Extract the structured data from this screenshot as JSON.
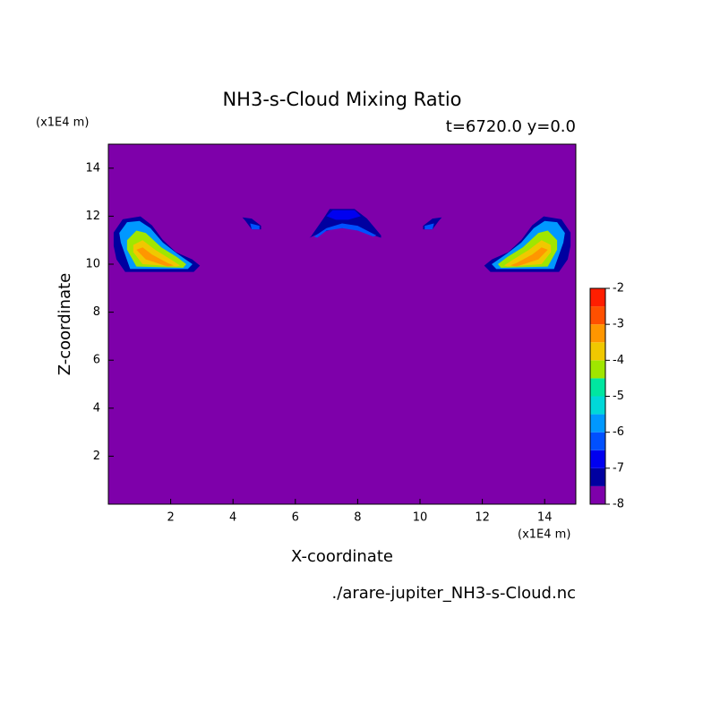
{
  "chart_data": {
    "type": "contour",
    "title": "NH3-s-Cloud Mixing Ratio",
    "subtitle": "t=6720.0 y=0.0",
    "xlabel": "X-coordinate",
    "ylabel": "Z-coordinate",
    "x_unit": "(x1E4 m)",
    "y_unit": "(x1E4 m)",
    "footer": "./arare-jupiter_NH3-s-Cloud.nc",
    "xlim": [
      0,
      15
    ],
    "ylim": [
      0,
      15
    ],
    "xticks": [
      2,
      4,
      6,
      8,
      10,
      12,
      14
    ],
    "yticks": [
      2,
      4,
      6,
      8,
      10,
      12,
      14
    ],
    "levels": [
      -8,
      -7.5,
      -7,
      -6.5,
      -6,
      -5.5,
      -5,
      -4.5,
      -4,
      -3.5,
      -3,
      -2.5,
      -2
    ],
    "colors": [
      "#7e00aa",
      "#0000a0",
      "#0000f0",
      "#0050ff",
      "#0098ff",
      "#00d8d8",
      "#00e6a0",
      "#a0e600",
      "#f0c800",
      "#ff9600",
      "#ff5000",
      "#ff1e00",
      "#ffaaaa"
    ],
    "cbar_ticks": [
      -2,
      -3,
      -4,
      -5,
      -6,
      -7,
      -8
    ],
    "contours": [
      {
        "level": -7.5,
        "x": [
          0.17,
          0.46,
          1.03,
          1.4,
          1.74,
          2.17,
          2.69,
          2.94,
          2.74,
          0.54,
          0.26,
          0.17
        ],
        "z": [
          11.32,
          11.87,
          11.99,
          11.62,
          11.02,
          10.5,
          10.2,
          9.94,
          9.68,
          9.68,
          10.2,
          10.76
        ]
      },
      {
        "level": -6,
        "x": [
          0.35,
          0.6,
          1.0,
          1.35,
          1.75,
          2.2,
          2.7,
          2.55,
          0.7,
          0.4
        ],
        "z": [
          11.3,
          11.75,
          11.8,
          11.5,
          10.9,
          10.45,
          10.0,
          9.8,
          9.8,
          10.9
        ]
      },
      {
        "level": -4.5,
        "x": [
          0.6,
          0.9,
          1.2,
          1.7,
          2.2,
          2.5,
          2.4,
          0.9,
          0.6
        ],
        "z": [
          11.0,
          11.4,
          11.3,
          10.7,
          10.3,
          10.0,
          9.85,
          9.9,
          10.6
        ]
      },
      {
        "level": -4,
        "x": [
          0.8,
          1.1,
          1.5,
          2.0,
          2.3,
          2.2,
          1.1,
          0.8
        ],
        "z": [
          10.8,
          11.0,
          10.6,
          10.2,
          9.95,
          9.9,
          10.0,
          10.5
        ]
      },
      {
        "level": -3.5,
        "x": [
          0.9,
          1.1,
          1.4,
          1.9,
          2.1,
          1.9,
          1.2
        ],
        "z": [
          10.6,
          10.7,
          10.4,
          10.05,
          9.95,
          9.9,
          10.2
        ]
      },
      {
        "level": -7.5,
        "x": [
          14.83,
          14.54,
          13.97,
          13.6,
          13.26,
          12.83,
          12.31,
          12.06,
          12.26,
          14.46,
          14.74,
          14.83
        ],
        "z": [
          11.32,
          11.87,
          11.99,
          11.62,
          11.02,
          10.5,
          10.2,
          9.94,
          9.68,
          9.68,
          10.2,
          10.76
        ]
      },
      {
        "level": -6,
        "x": [
          14.65,
          14.4,
          14.0,
          13.65,
          13.25,
          12.8,
          12.3,
          12.45,
          14.3,
          14.6
        ],
        "z": [
          11.3,
          11.75,
          11.8,
          11.5,
          10.9,
          10.45,
          10.0,
          9.8,
          9.8,
          10.9
        ]
      },
      {
        "level": -4.5,
        "x": [
          14.4,
          14.1,
          13.8,
          13.3,
          12.8,
          12.5,
          12.6,
          14.1,
          14.4
        ],
        "z": [
          11.0,
          11.4,
          11.3,
          10.7,
          10.3,
          10.0,
          9.85,
          9.9,
          10.6
        ]
      },
      {
        "level": -4,
        "x": [
          14.2,
          13.9,
          13.5,
          13.0,
          12.7,
          12.8,
          13.9,
          14.2
        ],
        "z": [
          10.8,
          11.0,
          10.6,
          10.2,
          9.95,
          9.9,
          10.0,
          10.5
        ]
      },
      {
        "level": -3.5,
        "x": [
          14.1,
          13.9,
          13.6,
          13.1,
          12.9,
          13.1,
          13.8
        ],
        "z": [
          10.6,
          10.7,
          10.4,
          10.05,
          9.95,
          9.9,
          10.2
        ]
      },
      {
        "level": -7.5,
        "x": [
          4.3,
          4.6,
          4.9,
          4.9,
          4.6,
          4.4
        ],
        "z": [
          11.95,
          11.9,
          11.6,
          11.45,
          11.45,
          11.8
        ]
      },
      {
        "level": -6.5,
        "x": [
          4.55,
          4.85,
          4.85,
          4.6
        ],
        "z": [
          11.7,
          11.6,
          11.45,
          11.45
        ]
      },
      {
        "level": -7.5,
        "x": [
          10.7,
          10.4,
          10.1,
          10.1,
          10.4,
          10.6
        ],
        "z": [
          11.95,
          11.9,
          11.6,
          11.45,
          11.45,
          11.8
        ]
      },
      {
        "level": -6.5,
        "x": [
          10.45,
          10.15,
          10.15,
          10.4
        ],
        "z": [
          11.7,
          11.6,
          11.45,
          11.45
        ]
      },
      {
        "level": -7.5,
        "x": [
          6.5,
          6.9,
          7.1,
          7.9,
          8.3,
          8.75,
          8.75,
          8.3,
          7.7,
          7.3,
          6.8,
          6.45
        ],
        "z": [
          11.15,
          11.9,
          12.3,
          12.3,
          11.9,
          11.2,
          11.1,
          11.3,
          11.5,
          11.5,
          11.3,
          11.1
        ]
      },
      {
        "level": -7,
        "x": [
          7.0,
          7.2,
          7.9,
          8.1,
          7.7,
          7.3
        ],
        "z": [
          12.0,
          12.25,
          12.25,
          12.0,
          11.85,
          11.85
        ]
      },
      {
        "level": -6.5,
        "x": [
          6.6,
          7.0,
          7.5,
          8.0,
          8.6,
          8.5,
          8.0,
          7.5,
          7.0,
          6.7
        ],
        "z": [
          11.15,
          11.5,
          11.7,
          11.6,
          11.2,
          11.15,
          11.4,
          11.5,
          11.4,
          11.1
        ]
      }
    ]
  }
}
